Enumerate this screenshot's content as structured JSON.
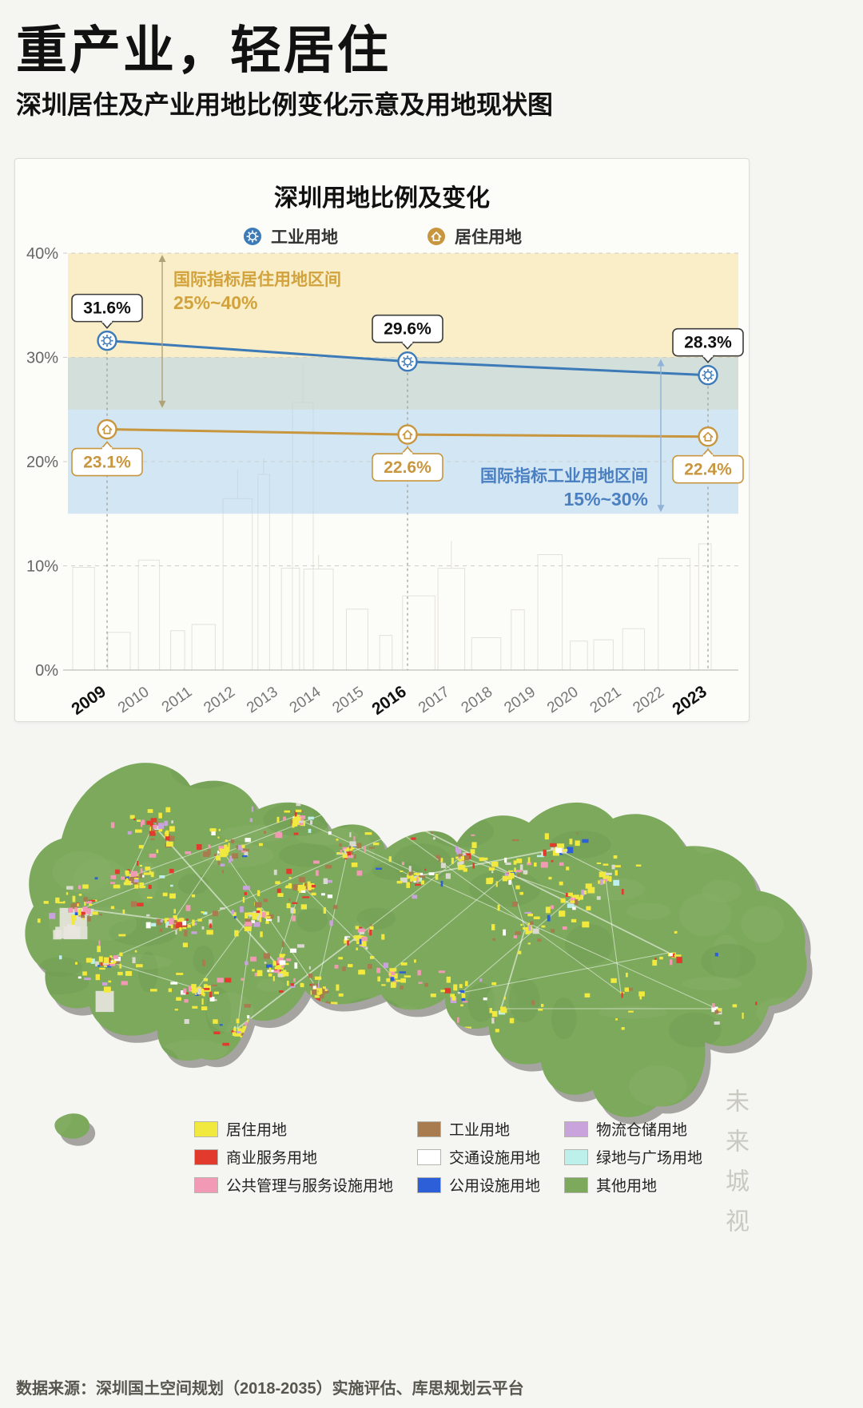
{
  "page": {
    "title": "重产业，轻居住",
    "subtitle": "深圳居住及产业用地比例变化示意及用地现状图",
    "source": "数据来源：深圳国土空间规划（2018-2035）实施评估、库思规划云平台",
    "watermark": "未来城视"
  },
  "chart_data": {
    "type": "line",
    "title": "深圳用地比例及变化",
    "x_ticks": [
      "2009",
      "2010",
      "2011",
      "2012",
      "2013",
      "2014",
      "2015",
      "2016",
      "2017",
      "2018",
      "2019",
      "2020",
      "2021",
      "2022",
      "2023"
    ],
    "highlight_years": [
      "2009",
      "2016",
      "2023"
    ],
    "series": [
      {
        "name": "工业用地",
        "icon": "gear",
        "color": "#3d7ab8",
        "years": [
          "2009",
          "2016",
          "2023"
        ],
        "values": [
          31.6,
          29.6,
          28.3
        ],
        "labels": [
          "31.6%",
          "29.6%",
          "28.3%"
        ]
      },
      {
        "name": "居住用地",
        "icon": "house",
        "color": "#c8963e",
        "years": [
          "2009",
          "2016",
          "2023"
        ],
        "values": [
          23.1,
          22.6,
          22.4
        ],
        "labels": [
          "23.1%",
          "22.6%",
          "22.4%"
        ]
      }
    ],
    "ylim": [
      0,
      40
    ],
    "y_ticks": [
      "0%",
      "10%",
      "20%",
      "30%",
      "40%"
    ],
    "grid": true,
    "legend_position": "top",
    "bands": [
      {
        "label": "国际指标居住用地区间",
        "range": "25%~40%",
        "from": 25,
        "to": 40,
        "color": "rgba(246,224,150,0.50)",
        "text_color": "#d2a23c"
      },
      {
        "label": "国际指标工业用地区间",
        "range": "15%~30%",
        "from": 15,
        "to": 30,
        "color": "rgba(168,206,238,0.48)",
        "text_color": "#4a7fc1"
      }
    ]
  },
  "map": {
    "legend": [
      {
        "label": "居住用地",
        "color": "#f2e93e"
      },
      {
        "label": "商业服务用地",
        "color": "#e23b2e"
      },
      {
        "label": "公共管理与服务设施用地",
        "color": "#f29ab5"
      },
      {
        "label": "工业用地",
        "color": "#a87c4f"
      },
      {
        "label": "交通设施用地",
        "color": "#ffffff"
      },
      {
        "label": "公用设施用地",
        "color": "#2c5fd8"
      },
      {
        "label": "物流仓储用地",
        "color": "#c9a3dc"
      },
      {
        "label": "绿地与广场用地",
        "color": "#bdf0ea"
      },
      {
        "label": "其他用地",
        "color": "#7ca95c"
      }
    ]
  }
}
